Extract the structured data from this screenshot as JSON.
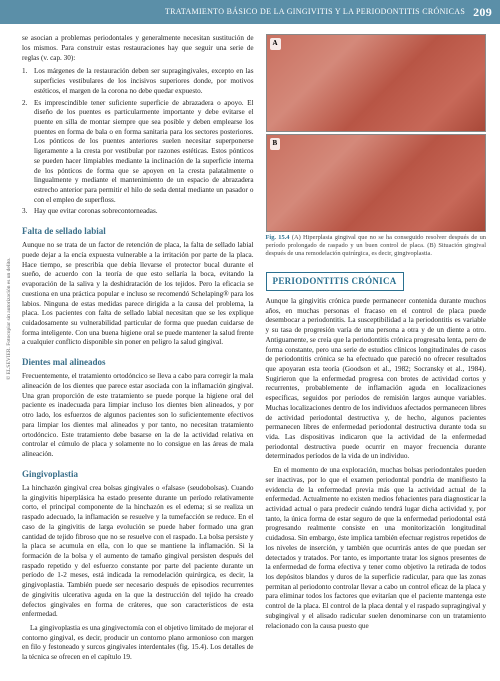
{
  "header": {
    "title": "TRATAMIENTO BÁSICO DE LA GINGIVITIS Y LA PERIODONTITIS CRÓNICAS",
    "page_number": "209"
  },
  "left_column": {
    "intro": "se asocian a problemas periodontales y generalmente necesitan sustitución de los mismos. Para construir estas restauraciones hay que seguir una serie de reglas (v. cap. 30):",
    "list": [
      "Los márgenes de la restauración deben ser supragingivales, excepto en las superficies vestibulares de los incisivos superiores donde, por motivos estéticos, el margen de la corona no debe quedar expuesto.",
      "Es imprescindible tener suficiente superficie de abrazadera o apoyo. El diseño de los puentes es particularmente importante y debe evitarse el puente en silla de montar siempre que sea posible y deben emplearse los puentes en forma de bala o en forma sanitaria para los sectores posteriores. Los pónticos de los puentes anteriores suelen necesitar superponerse ligeramente a la cresta por vestibular por razones estéticas. Estos pónticos se pueden hacer limpiables mediante la inclinación de la superficie interna de los pónticos de forma que se apoyen en la cresta palatalmente o lingualmente y mediante el mantenimiento de un espacio de abrazadera estrecho anterior para permitir el hilo de seda dental mediante un pasador o con el empleo de superfloss.",
      "Hay que evitar coronas sobrecontorneadas."
    ],
    "s1_title": "Falta de sellado labial",
    "s1_p1": "Aunque no se trata de un factor de retención de placa, la falta de sellado labial puede dejar a la encía expuesta vulnerable a la irritación por parte de la placa. Hace tiempo, se prescribía que debía llevarse el protector bucal durante el sueño, de acuerdo con la teoría de que esto sellaría la boca, evitando la evaporación de la saliva y la deshidratación de los tejidos. Pero la eficacia se cuestiona en una práctica popular e incluso se recomendó Schelaping® para los labios. Ninguna de estas medidas parece dirigida a la causa del problema, la placa. Los pacientes con falta de sellado labial necesitan que se les explique cuidadosamente su vulnerabilidad particular de forma que puedan cuidarse de forma inteligente. Con una buena higiene oral se puede mantener la salud frente a cualquier conflicto disponible sin poner en peligro la salud gingival.",
    "s2_title": "Dientes mal alineados",
    "s2_p1": "Frecuentemente, el tratamiento ortodóncico se lleva a cabo para corregir la mala alineación de los dientes que parece estar asociada con la inflamación gingival. Una gran proporción de este tratamiento se puede porque la higiene oral del paciente es inadecuada para limpiar incluso los dientes bien alineados, y por otro lado, los esfuerzos de algunos pacientes son lo suficientemente efectivos para limpiar los dientes mal alineados y por tanto, no necesitan tratamiento ortodóncico. Este tratamiento debe basarse en la de la actividad relativa en controlar el cúmulo de placa y solamente no lo consigue en las áreas de mala alineación.",
    "s3_title": "Gingivoplastia",
    "s3_p1": "La hinchazón gingival crea bolsas gingivales o «falsas» (seudobolsas). Cuando la gingivitis hiperplásica ha estado presente durante un período relativamente corto, el principal componente de la hinchazón es el edema; si se realiza un raspado adecuado, la inflamación se resuelve y la tumefacción se reduce. En el caso de la gingivitis de larga evolución se puede haber formado una gran cantidad de tejido fibroso que no se resuelve con el raspado. La bolsa persiste y la placa se acumula en ella, con lo que se mantiene la inflamación. Si la formación de la bolsa y el aumento de tamaño gingival persisten después del raspado repetido y del esfuerzo constante por parte del paciente durante un período de 1-2 meses, está indicada la remodelación quirúrgica, es decir, la gingivoplastia. También puede ser necesario después de episodios recurrentes de gingivitis ulcerativa aguda en la que la destrucción del tejido ha creado defectos gingivales en forma de cráteres, que son característicos de esta enfermedad.",
    "s3_p2": "La gingivoplastia es una gingivectomía con el objetivo limitado de mejorar el contorno gingival, es decir, producir un contorno plano armonioso con margen en filo y festoneado y surcos gingivales interdentales (fig. 15.4). Los detalles de la técnica se ofrecen en el capítulo 19."
  },
  "right_column": {
    "fig_a": "A",
    "fig_b": "B",
    "fig_caption_bold": "Fig. 15.4",
    "fig_caption": "(A) Hiperplasia gingival que no se ha conseguido resolver después de un período prolongado de raspado y un buen control de placa. (B) Situación gingival después de una remodelación quirúrgica, es decir, gingivoplastia.",
    "section_box": "PERIODONTITIS CRÓNICA",
    "p1": "Aunque la gingivitis crónica puede permanecer contenida durante muchos años, en muchas personas el fracaso en el control de placa puede desembocar a periodontitis. La susceptibilidad a la periodontitis es variable y su tasa de progresión varía de una persona a otra y de un diente a otro. Antiguamente, se creía que la periodontitis crónica progresaba lenta, pero de forma constante, pero una serie de estudios clínicos longitudinales de casos de periodontitis crónica se ha efectuado que pareció no ofrecer resultados que apoyaran esta teoría (Goodson et al., 1982; Socransky et al., 1984). Sugirieron que la enfermedad progresa con brotes de actividad cortos y recurrentes, probablemente de inflamación aguda en localizaciones específicas, seguidos por períodos de remisión largos aunque variables. Muchas localizaciones dentro de los individuos afectados permanecen libres de actividad periodontal destructiva y, de hecho, algunos pacientes permanecen libres de enfermedad periodontal destructiva durante toda su vida. Las dispositivas indicaron que la actividad de la enfermedad periodontal destructiva puede ocurrir en mayor frecuencia durante determinados períodos de la vida de un individuo.",
    "p2": "En el momento de una exploración, muchas bolsas periodontales pueden ser inactivas, por lo que el examen periodontal pondría de manifiesto la evidencia de la enfermedad previa más que la actividad actual de la enfermedad. Actualmente no existen medios fehacientes para diagnosticar la actividad actual o para predecir cuándo tendrá lugar dicha actividad y, por tanto, la única forma de estar seguro de que la enfermedad periodontal está progresando realmente consiste en una monitorización longitudinal cuidadosa. Sin embargo, éste implica también efectuar registros repetidos de los niveles de inserción, y también que ocurrirás antes de que puedan ser detectados y tratados. Por tanto, es importante tratar los signos presentes de la enfermedad de forma efectiva y tener como objetivo la retirada de todos los depósitos blandos y duros de la superficie radicular, para que las zonas permitan al periodonto controlar llevar a cabo un control eficaz de la placa y para eliminar todos los factores que evitarían que el paciente mantenga este control de la placa. El control de la placa dental y el raspado supragingival y subgingival y el alisado radicular suelen denominarse con un tratamiento relacionado con la causa puesto que"
  },
  "copyright": "© ELSEVIER. Fotocopiar sin autorización es un delito.",
  "colors": {
    "header_bg": "#5b8fa8",
    "section_color": "#3a6f8a",
    "box_border": "#2a7090"
  }
}
